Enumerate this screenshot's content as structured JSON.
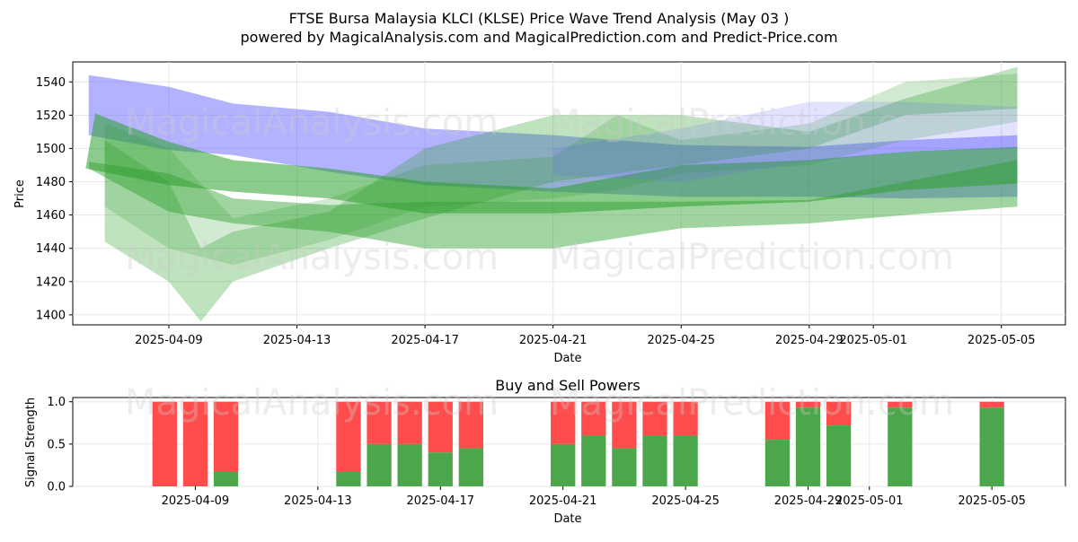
{
  "figure": {
    "title_line1": "FTSE Bursa Malaysia KLCI (KLSE) Price Wave Trend Analysis (May 03 )",
    "title_line2": "powered by MagicalAnalysis.com and MagicalPrediction.com and Predict-Price.com",
    "watermarks": [
      "MagicalAnalysis.com",
      "MagicalPrediction.com"
    ]
  },
  "chart_data": [
    {
      "type": "area",
      "title": "",
      "xlabel": "Date",
      "ylabel": "Price",
      "xlim": [
        "2025-04-06",
        "2025-05-07"
      ],
      "ylim": [
        1394,
        1552
      ],
      "grid": true,
      "x_ticks": [
        "2025-04-09",
        "2025-04-13",
        "2025-04-17",
        "2025-04-21",
        "2025-04-25",
        "2025-04-29",
        "2025-05-01",
        "2025-05-05"
      ],
      "y_ticks": [
        1400,
        1420,
        1440,
        1460,
        1480,
        1500,
        1520,
        1540
      ],
      "colors": {
        "blue_band": "#6666ff",
        "green_band": "#2ca02c",
        "dark_band": "#2f6f60"
      },
      "bands": [
        {
          "color": "blue",
          "opacity": 0.5,
          "upper": [
            [
              "2025-04-06.5",
              1544
            ],
            [
              "2025-04-09",
              1537
            ],
            [
              "2025-04-11",
              1527
            ],
            [
              "2025-04-14",
              1522
            ],
            [
              "2025-04-17",
              1512
            ],
            [
              "2025-04-21",
              1508
            ],
            [
              "2025-04-25",
              1502
            ],
            [
              "2025-04-29",
              1501
            ],
            [
              "2025-05-02",
              1505
            ],
            [
              "2025-05-05.5",
              1508
            ]
          ],
          "lower": [
            [
              "2025-05-05.5",
              1471
            ],
            [
              "2025-05-02",
              1470
            ],
            [
              "2025-04-29",
              1471
            ],
            [
              "2025-04-25",
              1471
            ],
            [
              "2025-04-21",
              1474
            ],
            [
              "2025-04-17",
              1478
            ],
            [
              "2025-04-14",
              1486
            ],
            [
              "2025-04-11",
              1496
            ],
            [
              "2025-04-09",
              1499
            ],
            [
              "2025-04-06.5",
              1508
            ]
          ]
        },
        {
          "color": "green",
          "opacity": 0.55,
          "upper": [
            [
              "2025-04-06.7",
              1521
            ],
            [
              "2025-04-09",
              1504
            ],
            [
              "2025-04-11",
              1493
            ],
            [
              "2025-04-14",
              1488
            ],
            [
              "2025-04-17",
              1480
            ],
            [
              "2025-04-21",
              1476
            ],
            [
              "2025-04-25",
              1490
            ],
            [
              "2025-04-29",
              1493
            ],
            [
              "2025-05-02",
              1498
            ],
            [
              "2025-05-05.5",
              1501
            ]
          ],
          "lower": [
            [
              "2025-05-05.5",
              1479
            ],
            [
              "2025-05-02",
              1475
            ],
            [
              "2025-04-29",
              1468
            ],
            [
              "2025-04-25",
              1465
            ],
            [
              "2025-04-21",
              1461
            ],
            [
              "2025-04-17",
              1461
            ],
            [
              "2025-04-14",
              1470
            ],
            [
              "2025-04-11",
              1474
            ],
            [
              "2025-04-09",
              1478
            ],
            [
              "2025-04-06.4",
              1488
            ]
          ]
        },
        {
          "color": "green",
          "opacity": 0.45,
          "upper": [
            [
              "2025-04-06.5",
              1492
            ],
            [
              "2025-04-09",
              1485
            ],
            [
              "2025-04-11",
              1470
            ],
            [
              "2025-04-14",
              1466
            ],
            [
              "2025-04-17",
              1468
            ],
            [
              "2025-04-21",
              1468
            ],
            [
              "2025-04-25",
              1468
            ],
            [
              "2025-04-29",
              1469
            ],
            [
              "2025-05-02",
              1480
            ],
            [
              "2025-05-05.5",
              1493
            ]
          ],
          "lower": [
            [
              "2025-05-05.5",
              1465
            ],
            [
              "2025-05-02",
              1460
            ],
            [
              "2025-04-29",
              1455
            ],
            [
              "2025-04-25",
              1452
            ],
            [
              "2025-04-21",
              1440
            ],
            [
              "2025-04-17",
              1440
            ],
            [
              "2025-04-14",
              1450
            ],
            [
              "2025-04-11",
              1455
            ],
            [
              "2025-04-09",
              1462
            ],
            [
              "2025-04-06.5",
              1488
            ]
          ]
        },
        {
          "color": "green",
          "opacity": 0.3,
          "upper": [
            [
              "2025-04-07",
              1505
            ],
            [
              "2025-04-09",
              1480
            ],
            [
              "2025-04-10",
              1440
            ],
            [
              "2025-04-11",
              1450
            ],
            [
              "2025-04-14",
              1462
            ],
            [
              "2025-04-17",
              1500
            ],
            [
              "2025-04-21",
              1520
            ],
            [
              "2025-04-25",
              1520
            ],
            [
              "2025-04-29",
              1510
            ],
            [
              "2025-05-02",
              1530
            ],
            [
              "2025-05-05.5",
              1549
            ]
          ],
          "lower": [
            [
              "2025-05-05.5",
              1524
            ],
            [
              "2025-05-02",
              1520
            ],
            [
              "2025-04-29",
              1500
            ],
            [
              "2025-04-25",
              1490
            ],
            [
              "2025-04-21",
              1480
            ],
            [
              "2025-04-17",
              1458
            ],
            [
              "2025-04-14",
              1440
            ],
            [
              "2025-04-11",
              1420
            ],
            [
              "2025-04-10",
              1396
            ],
            [
              "2025-04-09",
              1420
            ],
            [
              "2025-04-07",
              1444
            ]
          ]
        },
        {
          "color": "green",
          "opacity": 0.22,
          "upper": [
            [
              "2025-04-07",
              1515
            ],
            [
              "2025-04-09",
              1500
            ],
            [
              "2025-04-11",
              1458
            ],
            [
              "2025-04-14",
              1470
            ],
            [
              "2025-04-17",
              1490
            ],
            [
              "2025-04-21",
              1495
            ],
            [
              "2025-04-23",
              1520
            ],
            [
              "2025-04-25",
              1505
            ],
            [
              "2025-04-29",
              1515
            ],
            [
              "2025-05-02",
              1540
            ],
            [
              "2025-05-05.5",
              1545
            ]
          ],
          "lower": [
            [
              "2025-05-05.5",
              1516
            ],
            [
              "2025-05-02",
              1505
            ],
            [
              "2025-04-29",
              1490
            ],
            [
              "2025-04-25",
              1485
            ],
            [
              "2025-04-23",
              1475
            ],
            [
              "2025-04-21",
              1470
            ],
            [
              "2025-04-17",
              1465
            ],
            [
              "2025-04-14",
              1445
            ],
            [
              "2025-04-11",
              1430
            ],
            [
              "2025-04-09",
              1440
            ],
            [
              "2025-04-07",
              1465
            ]
          ]
        },
        {
          "color": "blue",
          "opacity": 0.18,
          "upper": [
            [
              "2025-04-21",
              1500
            ],
            [
              "2025-04-25",
              1512
            ],
            [
              "2025-04-29",
              1528
            ],
            [
              "2025-05-02",
              1528
            ],
            [
              "2025-05-05.5",
              1525
            ]
          ],
          "lower": [
            [
              "2025-05-05.5",
              1500
            ],
            [
              "2025-05-02",
              1498
            ],
            [
              "2025-04-29",
              1492
            ],
            [
              "2025-04-25",
              1480
            ],
            [
              "2025-04-21",
              1484
            ]
          ]
        }
      ]
    },
    {
      "type": "bar",
      "title": "Buy and Sell Powers",
      "xlabel": "Date",
      "ylabel": "Signal Strength",
      "ylim": [
        0,
        1.05
      ],
      "y_ticks": [
        0.0,
        0.5,
        1.0
      ],
      "x_ticks": [
        "2025-04-09",
        "2025-04-13",
        "2025-04-17",
        "2025-04-21",
        "2025-04-25",
        "2025-04-29",
        "2025-05-01",
        "2025-05-05"
      ],
      "grid": true,
      "colors": {
        "buy": "#4ca64c",
        "sell": "#ff4c4c"
      },
      "series": [
        {
          "values_buy": [
            0.0,
            0.0,
            0.17,
            0.17,
            0.5,
            0.5,
            0.4,
            0.45,
            0.5,
            0.6,
            0.45,
            0.6,
            0.6,
            0.55,
            0.93,
            0.72,
            0.93,
            0.93
          ],
          "categories": [
            "2025-04-08",
            "2025-04-09",
            "2025-04-10",
            "2025-04-14",
            "2025-04-15",
            "2025-04-16",
            "2025-04-17",
            "2025-04-18",
            "2025-04-21",
            "2025-04-22",
            "2025-04-23",
            "2025-04-24",
            "2025-04-25",
            "2025-04-28",
            "2025-04-29",
            "2025-04-30",
            "2025-05-02",
            "2025-05-05"
          ]
        }
      ]
    }
  ]
}
